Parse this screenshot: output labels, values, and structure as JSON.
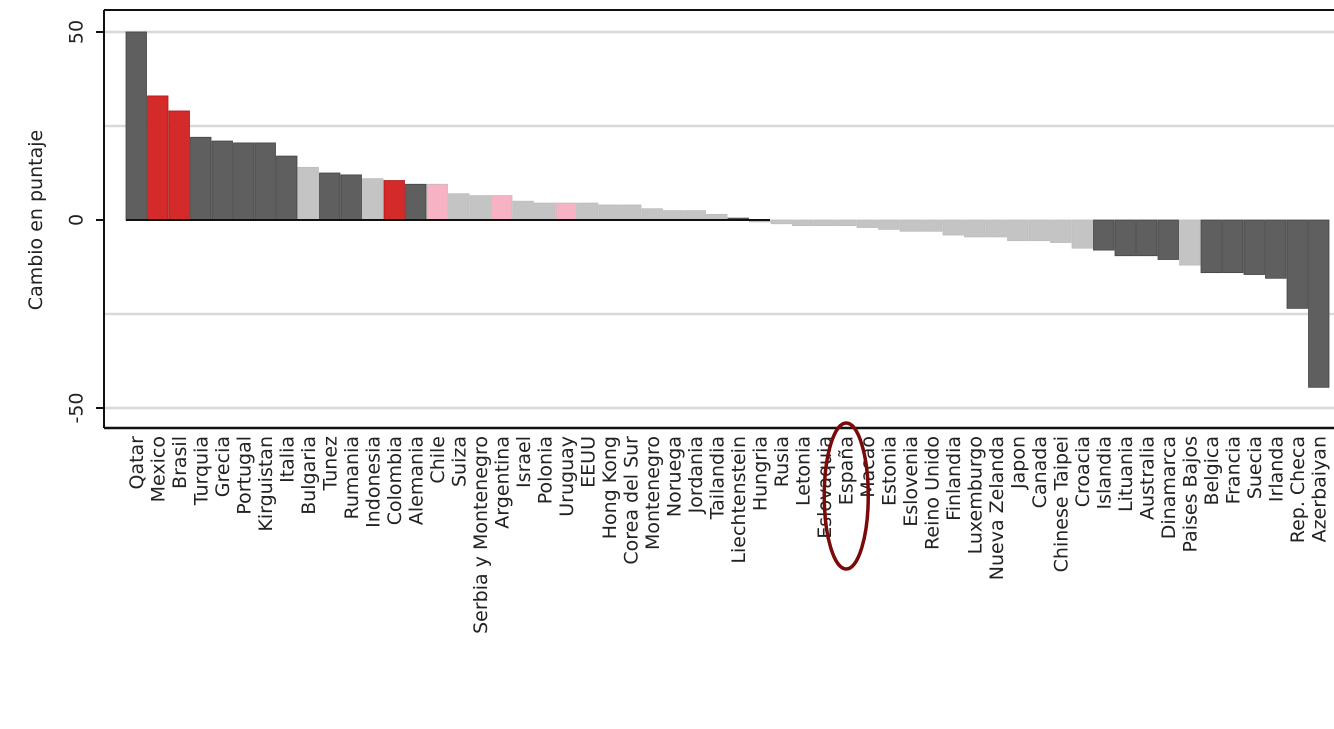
{
  "chart_data": {
    "type": "bar",
    "title": "",
    "xlabel": "",
    "ylabel": "Cambio en puntaje",
    "ylim": [
      -55,
      55
    ],
    "yticks": [
      -50,
      0,
      50
    ],
    "ytick_labels": [
      "-50",
      "0",
      "50"
    ],
    "grid": true,
    "highlight": "España",
    "colors": {
      "dark": "#5f5f5f",
      "light": "#c4c4c4",
      "red": "#d52a2a",
      "pink": "#f7b3c3",
      "highlight_ring": "#7a0a0a"
    },
    "categories": [
      "Qatar",
      "Mexico",
      "Brasil",
      "Turquia",
      "Grecia",
      "Portugal",
      "Kirguistan",
      "Italia",
      "Bulgaria",
      "Tunez",
      "Rumania",
      "Indonesia",
      "Colombia",
      "Alemania",
      "Chile",
      "Suiza",
      "Serbia y Montenegro",
      "Argentina",
      "Israel",
      "Polonia",
      "Uruguay",
      "EEUU",
      "Hong Kong",
      "Corea del Sur",
      "Montenegro",
      "Noruega",
      "Jordania",
      "Tailandia",
      "Liechtenstein",
      "Hungria",
      "Rusia",
      "Letonia",
      "Eslovaquia",
      "España",
      "Macao",
      "Estonia",
      "Eslovenia",
      "Reino Unido",
      "Finlandia",
      "Luxemburgo",
      "Nueva Zelanda",
      "Japon",
      "Canada",
      "Chinese Taipei",
      "Croacia",
      "Islandia",
      "Lituania",
      "Australia",
      "Dinamarca",
      "Paises Bajos",
      "Belgica",
      "Francia",
      "Suecia",
      "Irlanda",
      "Rep. Checa",
      "Azerbaiyan"
    ],
    "values": [
      50,
      33,
      29,
      22,
      21,
      20.5,
      20.5,
      17,
      14,
      12.5,
      12,
      11,
      10.5,
      9.5,
      9.5,
      7,
      6.5,
      6.5,
      5,
      4.5,
      4.5,
      4.5,
      4,
      4,
      3,
      2.5,
      2.5,
      1.5,
      0.5,
      -0.5,
      -1,
      -1.5,
      -1.5,
      -1.5,
      -2,
      -2.5,
      -3,
      -3,
      -4,
      -4.5,
      -4.5,
      -5.5,
      -5.5,
      -6,
      -7.5,
      -8,
      -9.5,
      -9.5,
      -10.5,
      -12,
      -14,
      -14,
      -14.5,
      -15.5,
      -23.5,
      -44.5
    ],
    "bar_colors": [
      "dark",
      "red",
      "red",
      "dark",
      "dark",
      "dark",
      "dark",
      "dark",
      "light",
      "dark",
      "dark",
      "light",
      "red",
      "dark",
      "pink",
      "light",
      "light",
      "pink",
      "light",
      "light",
      "pink",
      "light",
      "light",
      "light",
      "light",
      "light",
      "light",
      "light",
      "dark",
      "light",
      "light",
      "light",
      "light",
      "light",
      "light",
      "light",
      "light",
      "light",
      "light",
      "light",
      "light",
      "light",
      "light",
      "light",
      "light",
      "dark",
      "dark",
      "dark",
      "dark",
      "light",
      "dark",
      "dark",
      "dark",
      "dark",
      "dark",
      "dark"
    ]
  }
}
